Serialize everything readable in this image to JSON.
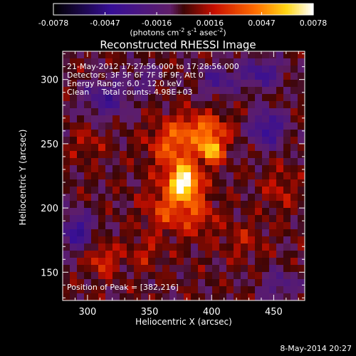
{
  "chart_data": {
    "type": "heatmap",
    "title": "Reconstructed RHESSI Image",
    "xlabel": "Heliocentric X (arcsec)",
    "ylabel": "Heliocentric Y (arcsec)",
    "xlim": [
      280,
      475
    ],
    "ylim": [
      128,
      322
    ],
    "xticks": [
      300,
      350,
      400,
      450
    ],
    "yticks": [
      150,
      200,
      250,
      300
    ],
    "colorbar": {
      "colormap": "black-purple-red-orange-yellow-white",
      "vmin": -0.0078,
      "vmax": 0.0078,
      "tick_labels": [
        "-0.0078",
        "-0.0047",
        "-0.0016",
        "0.0016",
        "0.0047",
        "0.0078"
      ],
      "unit_parts": [
        "(photons cm",
        "-2",
        " s",
        "-1",
        " asec",
        "-2",
        ")"
      ]
    },
    "annotations": [
      "21-May-2012 17:27:56.000 to 17:28:56.000",
      "Detectors: 3F 5F 6F 7F 8F 9F, Att 0",
      "Energy Range: 6.0 - 12.0 keV",
      "Clean     Total counts: 4.98E+03"
    ],
    "peak_label": "Position of Peak = [382,216]",
    "peak": [
      382,
      216
    ],
    "sources": [
      {
        "x": 378,
        "y": 220,
        "amplitude": 0.0078,
        "sigma_x": 8,
        "sigma_y": 9
      },
      {
        "x": 400,
        "y": 245,
        "amplitude": 0.0062,
        "sigma_x": 6,
        "sigma_y": 7
      },
      {
        "x": 370,
        "y": 248,
        "amplitude": 0.0036,
        "sigma_x": 14,
        "sigma_y": 14
      },
      {
        "x": 395,
        "y": 262,
        "amplitude": 0.0034,
        "sigma_x": 14,
        "sigma_y": 8
      },
      {
        "x": 365,
        "y": 200,
        "amplitude": 0.003,
        "sigma_x": 13,
        "sigma_y": 13
      },
      {
        "x": 390,
        "y": 195,
        "amplitude": 0.0022,
        "sigma_x": 10,
        "sigma_y": 12
      },
      {
        "x": 312,
        "y": 160,
        "amplitude": 0.0026,
        "sigma_x": 8,
        "sigma_y": 9
      },
      {
        "x": 345,
        "y": 165,
        "amplitude": 0.0016,
        "sigma_x": 10,
        "sigma_y": 8
      },
      {
        "x": 300,
        "y": 250,
        "amplitude": 0.0014,
        "sigma_x": 9,
        "sigma_y": 9
      },
      {
        "x": 455,
        "y": 215,
        "amplitude": 0.0016,
        "sigma_x": 9,
        "sigma_y": 12
      },
      {
        "x": 425,
        "y": 175,
        "amplitude": 0.0014,
        "sigma_x": 12,
        "sigma_y": 10
      },
      {
        "x": 292,
        "y": 182,
        "amplitude": -0.0042,
        "sigma_x": 9,
        "sigma_y": 10
      },
      {
        "x": 315,
        "y": 285,
        "amplitude": -0.0034,
        "sigma_x": 13,
        "sigma_y": 10
      },
      {
        "x": 445,
        "y": 262,
        "amplitude": -0.0042,
        "sigma_x": 10,
        "sigma_y": 10
      },
      {
        "x": 440,
        "y": 305,
        "amplitude": -0.0036,
        "sigma_x": 12,
        "sigma_y": 8
      },
      {
        "x": 405,
        "y": 300,
        "amplitude": -0.003,
        "sigma_x": 10,
        "sigma_y": 8
      },
      {
        "x": 455,
        "y": 140,
        "amplitude": -0.0024,
        "sigma_x": 10,
        "sigma_y": 8
      },
      {
        "x": 345,
        "y": 300,
        "amplitude": -0.002,
        "sigma_x": 8,
        "sigma_y": 8
      }
    ]
  },
  "footer": {
    "date": "8-May-2014 20:27"
  }
}
